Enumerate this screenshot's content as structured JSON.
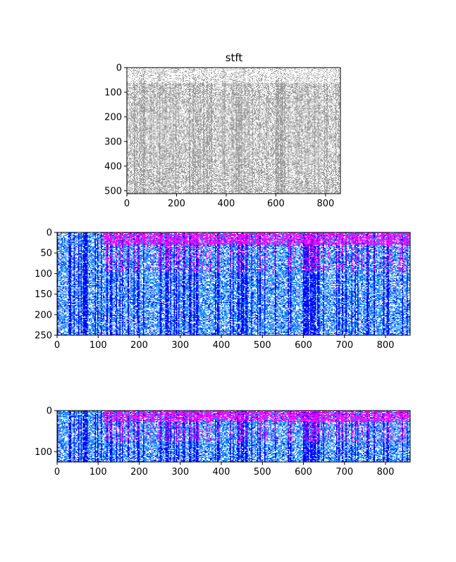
{
  "chart_data": [
    {
      "type": "heatmap",
      "title": "stft",
      "colormap": "gray",
      "colors": {
        "low": "#ffffff",
        "high": "#9a9a9a"
      },
      "xlim": [
        0,
        860
      ],
      "ylim": [
        512,
        0
      ],
      "xticks": [
        0,
        200,
        400,
        600,
        800
      ],
      "yticks": [
        0,
        100,
        200,
        300,
        400,
        500
      ],
      "xlabel": "",
      "ylabel": "",
      "grid": false
    },
    {
      "type": "heatmap",
      "title": "",
      "colormap": "cool-blue-magenta",
      "colors": {
        "low": "#1e90ff",
        "mid": "#0000ff",
        "high": "#ff00ff",
        "background": "#ffffff"
      },
      "xlim": [
        0,
        860
      ],
      "ylim": [
        250,
        0
      ],
      "xticks": [
        0,
        100,
        200,
        300,
        400,
        500,
        600,
        700,
        800
      ],
      "yticks": [
        0,
        50,
        100,
        150,
        200,
        250
      ],
      "xlabel": "",
      "ylabel": "",
      "grid": false
    },
    {
      "type": "heatmap",
      "title": "",
      "colormap": "cool-blue-magenta",
      "colors": {
        "low": "#1e90ff",
        "mid": "#0000ff",
        "high": "#ff00ff",
        "background": "#ffffff"
      },
      "xlim": [
        0,
        860
      ],
      "ylim": [
        125,
        0
      ],
      "xticks": [
        0,
        100,
        200,
        300,
        400,
        500,
        600,
        700,
        800
      ],
      "yticks": [
        0,
        100
      ],
      "xlabel": "",
      "ylabel": "",
      "grid": false
    }
  ]
}
